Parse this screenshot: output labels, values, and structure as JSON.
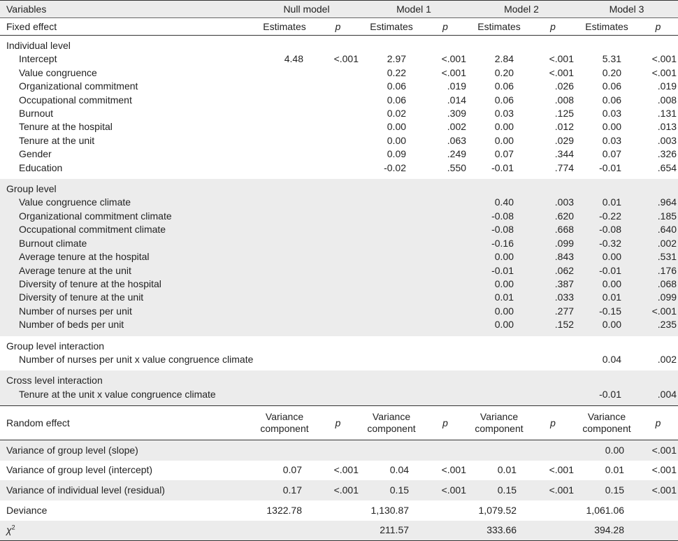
{
  "models": [
    "Null model",
    "Model 1",
    "Model 2",
    "Model 3"
  ],
  "fixed_effect_label": "Fixed effect",
  "variables_label": "Variables",
  "estimates_label": "Estimates",
  "p_label": "p",
  "sections": [
    {
      "title": "Individual level",
      "rows": [
        {
          "label": "Intercept",
          "v": [
            "4.48",
            "<.001",
            "2.97",
            "<.001",
            "2.84",
            "<.001",
            "5.31",
            "<.001"
          ]
        },
        {
          "label": "Value congruence",
          "v": [
            "",
            "",
            "0.22",
            "<.001",
            "0.20",
            "<.001",
            "0.20",
            "<.001"
          ]
        },
        {
          "label": "Organizational commitment",
          "v": [
            "",
            "",
            "0.06",
            ".019",
            "0.06",
            ".026",
            "0.06",
            ".019"
          ]
        },
        {
          "label": "Occupational commitment",
          "v": [
            "",
            "",
            "0.06",
            ".014",
            "0.06",
            ".008",
            "0.06",
            ".008"
          ]
        },
        {
          "label": "Burnout",
          "v": [
            "",
            "",
            "0.02",
            ".309",
            "0.03",
            ".125",
            "0.03",
            ".131"
          ]
        },
        {
          "label": "Tenure at the hospital",
          "v": [
            "",
            "",
            "0.00",
            ".002",
            "0.00",
            ".012",
            "0.00",
            ".013"
          ]
        },
        {
          "label": "Tenure at the unit",
          "v": [
            "",
            "",
            "0.00",
            ".063",
            "0.00",
            ".029",
            "0.03",
            ".003"
          ]
        },
        {
          "label": "Gender",
          "v": [
            "",
            "",
            "0.09",
            ".249",
            "0.07",
            ".344",
            "0.07",
            ".326"
          ]
        },
        {
          "label": "Education",
          "v": [
            "",
            "",
            "-0.02",
            ".550",
            "-0.01",
            ".774",
            "-0.01",
            ".654"
          ]
        }
      ]
    },
    {
      "title": "Group level",
      "rows": [
        {
          "label": "Value congruence climate",
          "v": [
            "",
            "",
            "",
            "",
            "0.40",
            ".003",
            "0.01",
            ".964"
          ]
        },
        {
          "label": "Organizational commitment climate",
          "v": [
            "",
            "",
            "",
            "",
            "-0.08",
            ".620",
            "-0.22",
            ".185"
          ]
        },
        {
          "label": "Occupational commitment climate",
          "v": [
            "",
            "",
            "",
            "",
            "-0.08",
            ".668",
            "-0.08",
            ".640"
          ]
        },
        {
          "label": "Burnout climate",
          "v": [
            "",
            "",
            "",
            "",
            "-0.16",
            ".099",
            "-0.32",
            ".002"
          ]
        },
        {
          "label": "Average tenure at the hospital",
          "v": [
            "",
            "",
            "",
            "",
            "0.00",
            ".843",
            "0.00",
            ".531"
          ]
        },
        {
          "label": "Average tenure at the unit",
          "v": [
            "",
            "",
            "",
            "",
            "-0.01",
            ".062",
            "-0.01",
            ".176"
          ]
        },
        {
          "label": "Diversity of tenure at the hospital",
          "v": [
            "",
            "",
            "",
            "",
            "0.00",
            ".387",
            "0.00",
            ".068"
          ]
        },
        {
          "label": "Diversity of tenure at the unit",
          "v": [
            "",
            "",
            "",
            "",
            "0.01",
            ".033",
            "0.01",
            ".099"
          ]
        },
        {
          "label": "Number of nurses per unit",
          "v": [
            "",
            "",
            "",
            "",
            "0.00",
            ".277",
            "-0.15",
            "<.001"
          ]
        },
        {
          "label": "Number of beds per unit",
          "v": [
            "",
            "",
            "",
            "",
            "0.00",
            ".152",
            "0.00",
            ".235"
          ]
        }
      ]
    },
    {
      "title": "Group level interaction",
      "rows": [
        {
          "label": "Number of nurses per unit x value congruence climate",
          "v": [
            "",
            "",
            "",
            "",
            "",
            "",
            "0.04",
            ".002"
          ]
        }
      ]
    },
    {
      "title": "Cross level interaction",
      "rows": [
        {
          "label": "Tenure at the unit x value congruence climate",
          "v": [
            "",
            "",
            "",
            "",
            "",
            "",
            "-0.01",
            ".004"
          ]
        }
      ]
    }
  ],
  "random_effect": {
    "title": "Random effect",
    "vc_line1": "Variance",
    "vc_line2": "component",
    "rows": [
      {
        "label": "Variance of group level (slope)",
        "v": [
          "",
          "",
          "",
          "",
          "",
          "",
          "0.00",
          "<.001"
        ]
      },
      {
        "label": "Variance of group level (intercept)",
        "v": [
          "0.07",
          "<.001",
          "0.04",
          "<.001",
          "0.01",
          "<.001",
          "0.01",
          "<.001"
        ]
      },
      {
        "label": "Variance of individual level (residual)",
        "v": [
          "0.17",
          "<.001",
          "0.15",
          "<.001",
          "0.15",
          "<.001",
          "0.15",
          "<.001"
        ]
      }
    ]
  },
  "deviance": {
    "label": "Deviance",
    "v": [
      "1322.78",
      "1,130.87",
      "1,079.52",
      "1,061.06"
    ]
  },
  "chi2": {
    "symbol": "χ",
    "sup": "2",
    "v": [
      "",
      "211.57",
      "333.66",
      "394.28"
    ]
  }
}
